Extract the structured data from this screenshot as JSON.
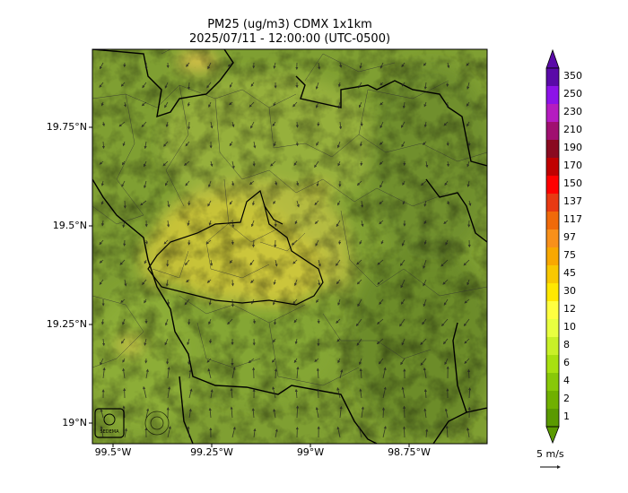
{
  "title_line1": "PM25 (ug/m3) CDMX 1x1km",
  "title_line2": "2025/07/11 - 12:00:00 (UTC-0500)",
  "lat_labels": [
    "19.75°N",
    "19.5°N",
    "19.25°N",
    "19°N"
  ],
  "lon_labels": [
    "99.5°W",
    "99.25°W",
    "99°W",
    "98.75°W"
  ],
  "colorbar": {
    "levels": [
      "350",
      "250",
      "230",
      "210",
      "190",
      "170",
      "150",
      "137",
      "117",
      "97",
      "75",
      "45",
      "30",
      "12",
      "10",
      "8",
      "6",
      "4",
      "2",
      "1"
    ],
    "colors": [
      "#5a0aa8",
      "#8d12e8",
      "#b51cc0",
      "#a01070",
      "#8a0a20",
      "#c00000",
      "#ff0000",
      "#e83a12",
      "#f06a0a",
      "#f8901a",
      "#f8a800",
      "#f8c800",
      "#ffe800",
      "#ffff40",
      "#e8ff40",
      "#c8f028",
      "#a8e010",
      "#88c808",
      "#70b000",
      "#5a9a00"
    ]
  },
  "wind_reference": "5 m/s",
  "colors": {
    "map_base": "#7f9f32",
    "urban": "#c8c438",
    "border": "#000000"
  }
}
